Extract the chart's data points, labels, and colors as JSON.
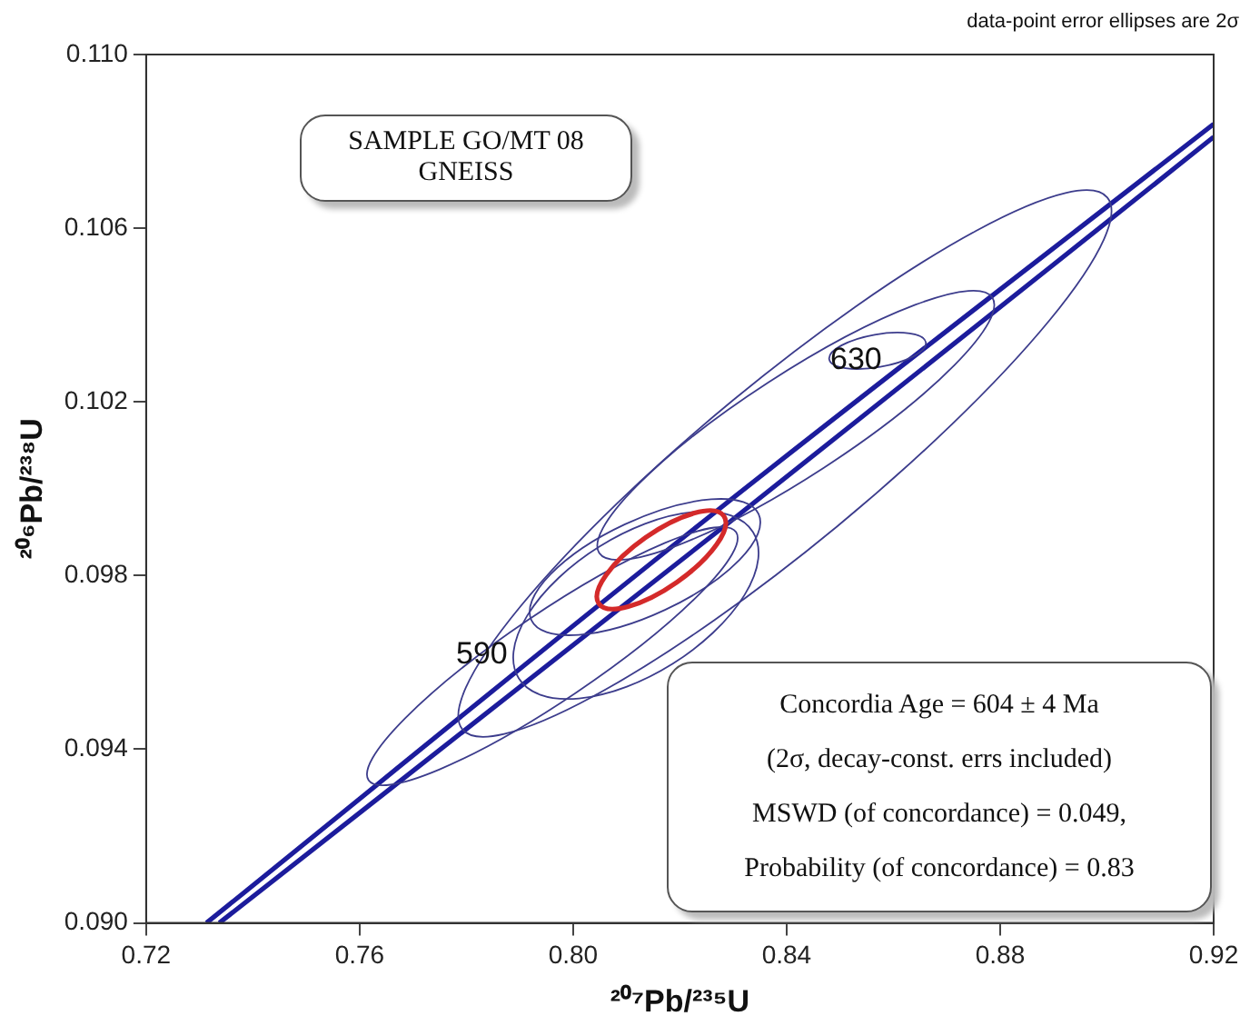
{
  "chart_data": {
    "type": "line",
    "xlabel": "²⁰⁷Pb/²³⁵U",
    "ylabel": "²⁰⁶Pb/²³⁸U",
    "xlim": [
      0.72,
      0.92
    ],
    "xticks": [
      0.72,
      0.76,
      {
        "value": 0.8,
        "label": "0.80"
      },
      0.84,
      0.88,
      0.92
    ],
    "ylim": [
      0.09,
      0.11
    ],
    "yticks": [
      {
        "value": 0.09,
        "label": "0.090"
      },
      0.094,
      0.098,
      0.102,
      0.106,
      {
        "value": 0.11,
        "label": "0.110"
      }
    ],
    "grid": false,
    "legend": false,
    "marker": "none",
    "line_style": "solid",
    "series": [
      {
        "color": "#1c1c9c",
        "x": [
          0.7313,
          0.827,
          0.92
        ],
        "values": [
          0.09,
          0.0995,
          0.1084
        ]
      },
      {
        "color": "#1c1c9c",
        "x": [
          0.7337,
          0.83,
          0.92
        ],
        "values": [
          0.09,
          0.0993,
          0.1081
        ]
      }
    ],
    "annotations": [
      "SAMPLE GO/MT 08\nGNEISS",
      "Concordia Age = 604 ± 4 Ma\n(2σ, decay-const. errs included)\nMSWD (of concordance) = 0.049,\nProbability (of concordance) = 0.83",
      "data-point error ellipses are 2σ",
      "590",
      "630"
    ]
  }
}
